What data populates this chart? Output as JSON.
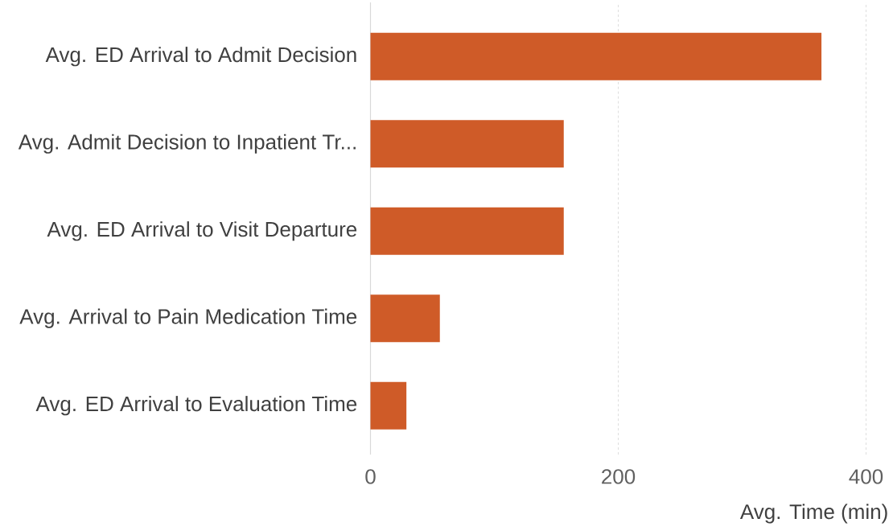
{
  "chart_data": {
    "type": "bar",
    "orientation": "horizontal",
    "categories": [
      "Avg. ED Arrival to Admit Decision",
      "Avg. Admit Decision to Inpatient Tr...",
      "Avg. ED Arrival to Visit Departure",
      "Avg. Arrival to Pain Medication Time",
      "Avg. ED Arrival to Evaluation Time"
    ],
    "values": [
      364,
      156,
      156,
      56,
      29
    ],
    "color": "#cf5b28",
    "xlabel": "Avg. Time (min)",
    "xlim": [
      0,
      400
    ],
    "xticks": [
      0,
      200,
      400
    ],
    "grid": "x"
  }
}
